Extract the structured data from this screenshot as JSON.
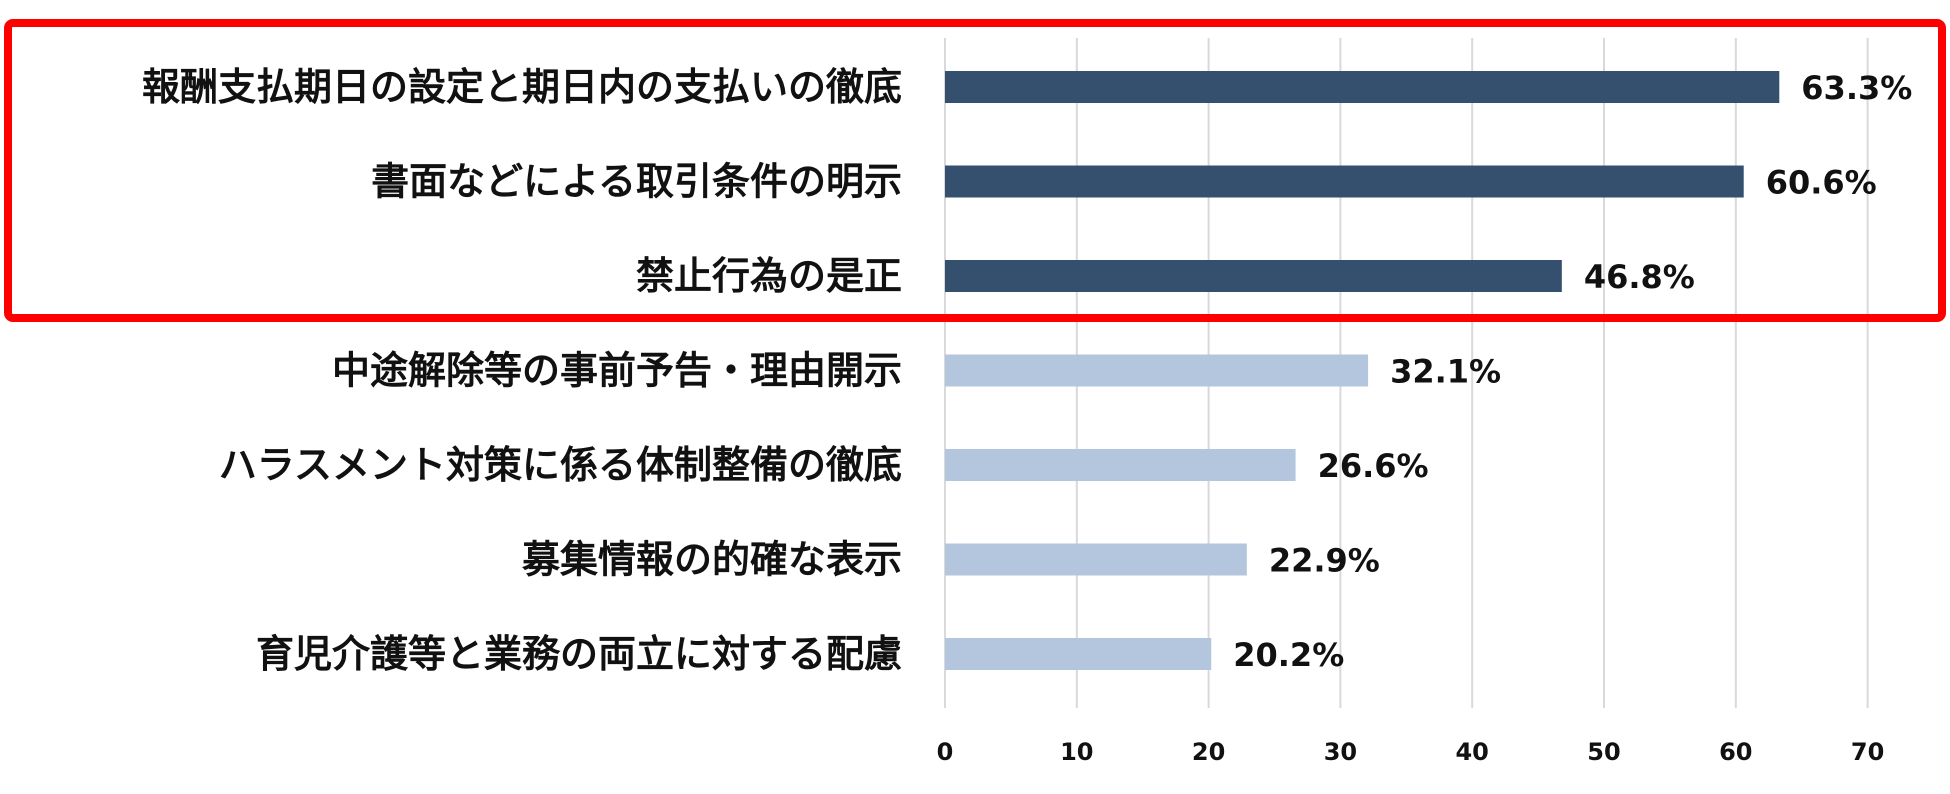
{
  "chart_data": {
    "type": "bar",
    "orientation": "horizontal",
    "title": "",
    "xlabel": "",
    "ylabel": "",
    "xlim": [
      0,
      70
    ],
    "xticks": [
      0,
      10,
      20,
      30,
      40,
      50,
      60,
      70
    ],
    "grid": "vertical",
    "legend": "none",
    "categories": [
      "報酬支払期日の設定と期日内の支払いの徹底",
      "書面などによる取引条件の明示",
      "禁止行為の是正",
      "中途解除等の事前予告・理由開示",
      "ハラスメント対策に係る体制整備の徹底",
      "募集情報の的確な表示",
      "育児介護等と業務の両立に対する配慮"
    ],
    "values": [
      63.3,
      60.6,
      46.8,
      32.1,
      26.6,
      22.9,
      20.2
    ],
    "value_labels": [
      "63.3%",
      "60.6%",
      "46.8%",
      "32.1%",
      "26.6%",
      "22.9%",
      "20.2%"
    ],
    "highlighted_count": 3,
    "colors": {
      "highlighted_bar": "#34506e",
      "normal_bar": "#b4c6dd",
      "highlight_box": "#ff0000",
      "gridline": "#d9d9d9"
    }
  }
}
